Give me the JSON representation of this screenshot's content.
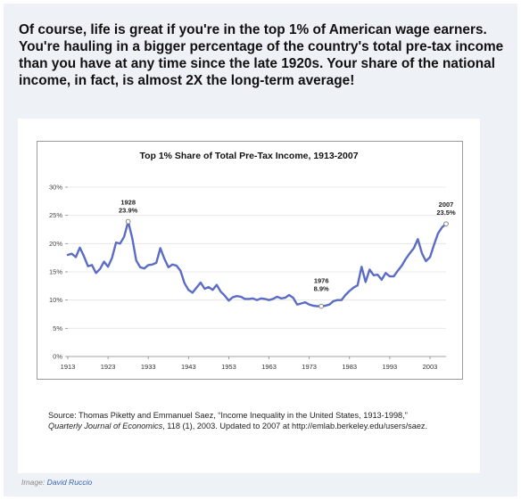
{
  "headline": "Of course, life is great if you're in the top 1% of American wage earners. You're hauling in a bigger percentage of the country's total pre-tax income than you have at any time since the late 1920s. Your share of the national income, in fact, is almost 2X the long-term average!",
  "source": {
    "lead": "Source: Thomas Piketty and Emmanuel Saez, “Income Inequality in the United States, 1913-1998,” ",
    "journal": "Quarterly Journal of Economics",
    "tail": ", 118 (1), 2003. Updated to 2007 at http://emlab.berkeley.edu/users/saez."
  },
  "credit": {
    "prefix": "Image: ",
    "author": "David Ruccio"
  },
  "colors": {
    "line": "#5b6cc7",
    "panel": "#eef1f6",
    "grid": "#e4e4e4"
  },
  "chart_data": {
    "type": "line",
    "title": "Top 1% Share of Total Pre-Tax Income, 1913-2007",
    "xlim": [
      1913,
      2007
    ],
    "ylim": [
      0,
      30
    ],
    "x_ticks": [
      1913,
      1923,
      1933,
      1943,
      1953,
      1963,
      1973,
      1983,
      1993,
      2003
    ],
    "x_tick_labels": [
      "1913",
      "1923",
      "1933",
      "1943",
      "1953",
      "1963",
      "1973",
      "1983",
      "1993",
      "2003"
    ],
    "y_ticks": [
      0,
      5,
      10,
      15,
      20,
      25,
      30
    ],
    "y_tick_labels": [
      "0%",
      "5%",
      "10%",
      "15%",
      "20%",
      "25%",
      "30%"
    ],
    "grid": true,
    "series": [
      {
        "x": [
          1913,
          1914,
          1915,
          1916,
          1917,
          1918,
          1919,
          1920,
          1921,
          1922,
          1923,
          1924,
          1925,
          1926,
          1927,
          1928,
          1929,
          1930,
          1931,
          1932,
          1933,
          1934,
          1935,
          1936,
          1937,
          1938,
          1939,
          1940,
          1941,
          1942,
          1943,
          1944,
          1945,
          1946,
          1947,
          1948,
          1949,
          1950,
          1951,
          1952,
          1953,
          1954,
          1955,
          1956,
          1957,
          1958,
          1959,
          1960,
          1961,
          1962,
          1963,
          1964,
          1965,
          1966,
          1967,
          1968,
          1969,
          1970,
          1971,
          1972,
          1973,
          1974,
          1975,
          1976,
          1977,
          1978,
          1979,
          1980,
          1981,
          1982,
          1983,
          1984,
          1985,
          1986,
          1987,
          1988,
          1989,
          1990,
          1991,
          1992,
          1993,
          1994,
          1995,
          1996,
          1997,
          1998,
          1999,
          2000,
          2001,
          2002,
          2003,
          2004,
          2005,
          2006,
          2007
        ],
        "values": [
          18.0,
          18.2,
          17.6,
          19.3,
          17.8,
          16.0,
          16.2,
          14.8,
          15.5,
          16.8,
          15.9,
          17.5,
          20.2,
          20.0,
          21.2,
          23.9,
          21.0,
          17.0,
          15.8,
          15.6,
          16.2,
          16.3,
          16.6,
          19.2,
          17.3,
          15.8,
          16.3,
          16.1,
          15.2,
          13.0,
          11.8,
          11.3,
          12.2,
          13.1,
          12.0,
          12.3,
          11.8,
          12.7,
          11.5,
          10.8,
          9.9,
          10.5,
          10.7,
          10.6,
          10.2,
          10.2,
          10.3,
          10.0,
          10.3,
          10.2,
          10.0,
          10.2,
          10.6,
          10.3,
          10.4,
          10.9,
          10.4,
          9.2,
          9.4,
          9.6,
          9.2,
          9.0,
          8.9,
          8.9,
          9.0,
          9.2,
          9.8,
          10.0,
          10.0,
          10.9,
          11.6,
          12.2,
          12.6,
          15.9,
          13.2,
          15.4,
          14.4,
          14.5,
          13.6,
          14.8,
          14.2,
          14.2,
          15.2,
          16.1,
          17.3,
          18.3,
          19.2,
          20.8,
          18.3,
          16.9,
          17.6,
          19.8,
          21.8,
          22.9,
          23.5
        ]
      }
    ],
    "annotations": [
      {
        "year": "1928",
        "value": "23.9%",
        "x": 1928,
        "y": 23.9
      },
      {
        "year": "1976",
        "value": "8.9%",
        "x": 1976,
        "y": 8.9
      },
      {
        "year": "2007",
        "value": "23.5%",
        "x": 2007,
        "y": 23.5
      }
    ]
  }
}
